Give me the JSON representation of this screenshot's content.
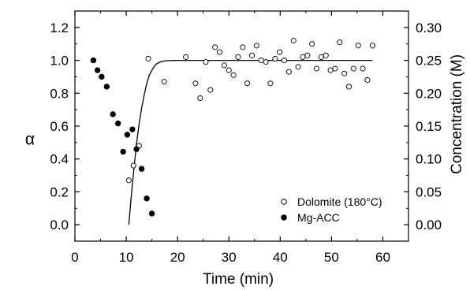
{
  "chart_data": {
    "type": "scatter",
    "xlabel": "Time (min)",
    "ylabel_left": "α",
    "ylabel_right": "Concentration (M)",
    "xlim": [
      0,
      65
    ],
    "ylim_left": [
      -0.1,
      1.3
    ],
    "ylim_right": [
      -0.025,
      0.325
    ],
    "x_ticks": [
      0,
      10,
      20,
      30,
      40,
      50,
      60
    ],
    "y_ticks_left": [
      0.0,
      0.2,
      0.4,
      0.6,
      0.8,
      1.0,
      1.2
    ],
    "y_ticks_right": [
      0.0,
      0.05,
      0.1,
      0.15,
      0.2,
      0.25,
      0.3
    ],
    "x_tick_labels": [
      "0",
      "10",
      "20",
      "30",
      "40",
      "50",
      "60"
    ],
    "y_tick_labels_left": [
      "0.0",
      "0.2",
      "0.4",
      "0.6",
      "0.8",
      "1.0",
      "1.2"
    ],
    "y_tick_labels_right": [
      "0.00",
      "0.05",
      "0.10",
      "0.15",
      "0.20",
      "0.25",
      "0.30"
    ],
    "grid": false,
    "legend_position": "bottom-right",
    "series": [
      {
        "name": "Dolomite (180°C)",
        "marker": "open-circle",
        "axis": "left",
        "x": [
          10.5,
          11.4,
          12.5,
          14.3,
          17.4,
          21.6,
          23.5,
          24.4,
          25.5,
          26.4,
          27.3,
          28.2,
          29.1,
          30.0,
          30.9,
          31.8,
          32.7,
          33.6,
          34.5,
          35.4,
          36.3,
          37.2,
          38.1,
          39.0,
          39.9,
          40.8,
          41.7,
          42.6,
          43.5,
          44.4,
          45.3,
          46.2,
          47.1,
          48.0,
          48.9,
          49.8,
          50.7,
          51.6,
          52.5,
          53.4,
          54.3,
          55.2,
          56.1,
          57.0,
          58.0
        ],
        "y": [
          0.27,
          0.36,
          0.48,
          1.01,
          0.87,
          1.02,
          0.86,
          0.77,
          0.99,
          0.82,
          1.08,
          1.05,
          0.97,
          0.94,
          0.91,
          1.02,
          1.08,
          0.86,
          1.03,
          1.09,
          1.0,
          0.99,
          0.86,
          1.01,
          1.05,
          1.0,
          0.93,
          1.12,
          0.96,
          1.02,
          1.03,
          1.1,
          0.95,
          1.02,
          1.03,
          0.94,
          0.95,
          1.11,
          0.92,
          0.84,
          0.95,
          1.09,
          0.95,
          0.88,
          1.09
        ]
      },
      {
        "name": "Mg-ACC",
        "marker": "filled-circle",
        "axis": "right",
        "x": [
          3.6,
          4.4,
          5.2,
          6.2,
          7.4,
          8.4,
          9.4,
          10.2,
          11.2,
          12.0,
          13.0,
          14.0,
          15.0
        ],
        "y": [
          0.25,
          0.235,
          0.225,
          0.21,
          0.168,
          0.154,
          0.111,
          0.137,
          0.145,
          0.115,
          0.085,
          0.04,
          0.017
        ]
      },
      {
        "name": "",
        "marker": "line",
        "axis": "left",
        "x": [
          10.5,
          11.0,
          11.5,
          12.0,
          12.5,
          13.0,
          13.5,
          14.0,
          14.5,
          15.0,
          15.5,
          16.0,
          16.5,
          17.0,
          17.5,
          18.0,
          19.0,
          20.0,
          22.0,
          25.0,
          30.0,
          40.0,
          50.0,
          58.0
        ],
        "y": [
          0.0,
          0.18,
          0.34,
          0.49,
          0.61,
          0.71,
          0.79,
          0.86,
          0.91,
          0.94,
          0.965,
          0.98,
          0.988,
          0.993,
          0.996,
          0.998,
          0.999,
          1.0,
          1.0,
          1.0,
          1.0,
          1.0,
          1.0,
          1.0
        ]
      }
    ]
  }
}
